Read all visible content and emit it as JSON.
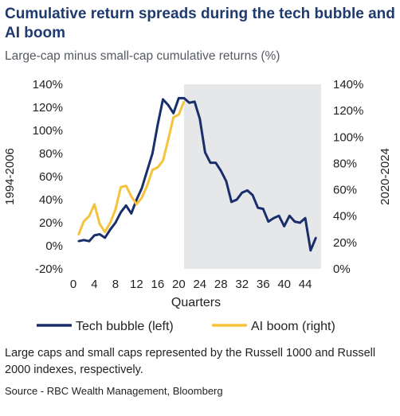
{
  "title": "Cumulative return spreads during the tech bubble and AI boom",
  "subtitle": "Large-cap minus small-cap cumulative returns (%)",
  "note": "Large caps and small caps represented by the Russell 1000 and Russell 2000 indexes, respectively.",
  "source": "Source - RBC Wealth Management, Bloomberg",
  "colors": {
    "tech": "#1a2e6b",
    "ai": "#f5c33b",
    "shade": "#e6e7e8"
  },
  "chart_data": {
    "type": "line",
    "xlabel": "Quarters",
    "ylabel_left": "1994-2006",
    "ylabel_right": "2020-2024",
    "xlim": [
      0,
      47
    ],
    "x_ticks": [
      0,
      4,
      8,
      12,
      16,
      20,
      24,
      28,
      32,
      36,
      40,
      44
    ],
    "ylim_left": [
      -20,
      140
    ],
    "y_ticks_left": [
      -20,
      0,
      20,
      40,
      60,
      80,
      100,
      120,
      140
    ],
    "ylim_right": [
      0,
      140
    ],
    "y_ticks_right": [
      0,
      20,
      40,
      60,
      80,
      100,
      120,
      140
    ],
    "shaded_region_x": [
      21,
      47
    ],
    "series": [
      {
        "name": "Tech bubble (left)",
        "axis": "left",
        "x": [
          1,
          2,
          3,
          4,
          5,
          6,
          7,
          8,
          9,
          10,
          11,
          12,
          13,
          14,
          15,
          16,
          17,
          18,
          19,
          20,
          21,
          22,
          23,
          24,
          25,
          26,
          27,
          28,
          29,
          30,
          31,
          32,
          33,
          34,
          35,
          36,
          37,
          38,
          39,
          40,
          41,
          42,
          43,
          44,
          45,
          46
        ],
        "y": [
          4,
          5,
          4,
          9,
          10,
          7,
          14,
          20,
          29,
          35,
          28,
          40,
          50,
          65,
          80,
          105,
          127,
          122,
          115,
          128,
          128,
          124,
          125,
          110,
          81,
          72,
          72,
          65,
          56,
          38,
          40,
          46,
          48,
          44,
          33,
          32,
          21,
          24,
          26,
          17,
          26,
          21,
          20,
          24,
          -4,
          7
        ]
      },
      {
        "name": "AI boom (right)",
        "axis": "right",
        "x": [
          1,
          2,
          3,
          4,
          5,
          6,
          7,
          8,
          9,
          10,
          11,
          12,
          13,
          14,
          15,
          16,
          17,
          18,
          19,
          20,
          21
        ],
        "y": [
          26,
          36,
          40,
          49,
          34,
          28,
          35,
          45,
          62,
          63,
          55,
          49,
          54,
          63,
          75,
          77,
          82,
          98,
          115,
          117,
          127
        ]
      }
    ]
  }
}
